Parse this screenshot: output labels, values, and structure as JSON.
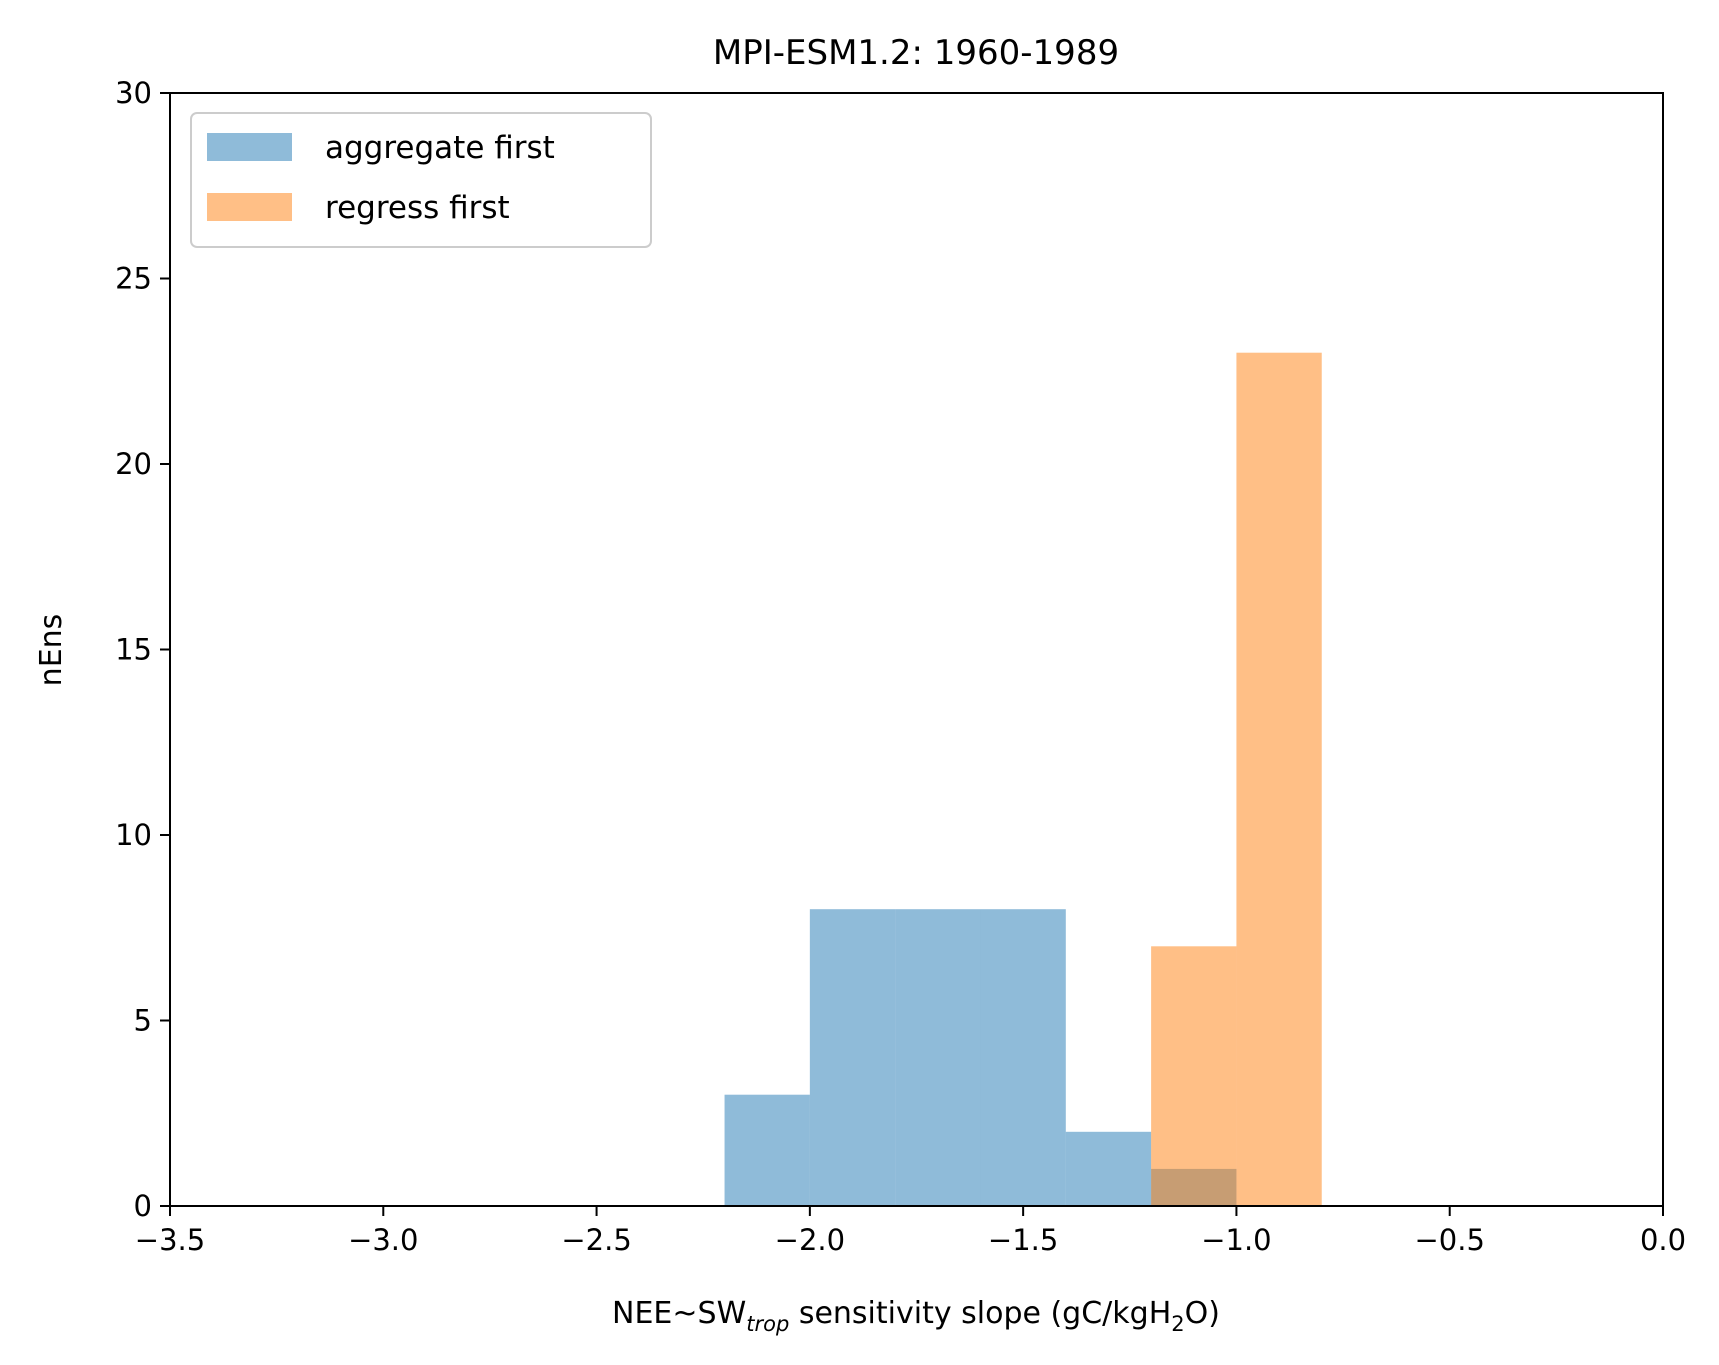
{
  "chart_data": {
    "type": "histogram",
    "title": "MPI-ESM1.2: 1960-1989",
    "xlabel": {
      "prefix": "NEE~SW",
      "subscript": "trop",
      "middle": " sensitivity slope (gC/kgH",
      "subscript2": "2",
      "suffix": "O)"
    },
    "ylabel": "nEns",
    "xlim": [
      -3.5,
      0.0
    ],
    "ylim": [
      0,
      30
    ],
    "xticks": [
      -3.5,
      -3.0,
      -2.5,
      -2.0,
      -1.5,
      -1.0,
      -0.5,
      0.0
    ],
    "xtick_labels": [
      "−3.5",
      "−3.0",
      "−2.5",
      "−2.0",
      "−1.5",
      "−1.0",
      "−0.5",
      "0.0"
    ],
    "yticks": [
      0,
      5,
      10,
      15,
      20,
      25,
      30
    ],
    "ytick_labels": [
      "0",
      "5",
      "10",
      "15",
      "20",
      "25",
      "30"
    ],
    "grid": false,
    "legend_position": "upper-left",
    "series": [
      {
        "name": "aggregate first",
        "color": "#1f77b4",
        "alpha": 0.5,
        "bin_edges": [
          -2.2,
          -2.0,
          -1.8,
          -1.6,
          -1.4,
          -1.2,
          -1.0
        ],
        "counts": [
          3,
          8,
          8,
          8,
          2,
          1
        ]
      },
      {
        "name": "regress first",
        "color": "#ff7f0e",
        "alpha": 0.5,
        "bin_edges": [
          -1.2,
          -1.0,
          -0.8
        ],
        "counts": [
          7,
          23
        ]
      }
    ]
  }
}
